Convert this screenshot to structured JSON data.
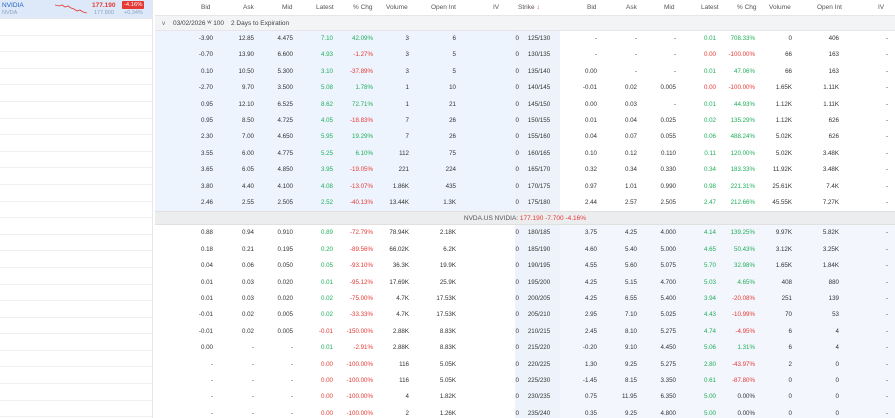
{
  "watchlist": {
    "symbol": "NVIDIA",
    "ticker": "NVDA",
    "price": "177.190",
    "price_sub": "177.800",
    "change_pct": "-4.16%",
    "change_sub": "+0.34%"
  },
  "columns": {
    "bid": "Bid",
    "ask": "Ask",
    "mid": "Mid",
    "latest": "Latest",
    "pct": "% Chg",
    "volume": "Volume",
    "oi": "Open Int",
    "iv": "IV",
    "strike": "Strike",
    "p_bid": "Bid",
    "p_ask": "Ask",
    "p_mid": "Mid",
    "p_latest": "Latest",
    "p_pct": "% Chg",
    "p_volume": "Volume",
    "p_oi": "Open Int",
    "p_iv": "IV"
  },
  "expiration": {
    "chevron": "v",
    "date": "03/02/2026 ᵂ 100",
    "days": "2 Days to Expiration"
  },
  "underlying": {
    "label": "NVDA.US NVIDIA:",
    "price": "177.190",
    "change": "-7.700",
    "pct": "-4.16%"
  },
  "rows_top": [
    [
      "-3.90",
      "12.85",
      "4.475",
      "7.10",
      "42.09%",
      "3",
      "6",
      "0",
      "125/130",
      "-",
      "-",
      "-",
      "0.01",
      "708.33%",
      "0",
      "406",
      "-"
    ],
    [
      "-0.70",
      "13.90",
      "6.600",
      "4.93",
      "-1.27%",
      "3",
      "5",
      "0",
      "130/135",
      "-",
      "-",
      "-",
      "0.00",
      "-100.00%",
      "66",
      "163",
      "-"
    ],
    [
      "0.10",
      "10.50",
      "5.300",
      "3.10",
      "-37.89%",
      "3",
      "5",
      "0",
      "135/140",
      "0.00",
      "-",
      "-",
      "0.01",
      "47.06%",
      "66",
      "163",
      "-"
    ],
    [
      "-2.70",
      "9.70",
      "3.500",
      "5.08",
      "1.78%",
      "1",
      "10",
      "0",
      "140/145",
      "-0.01",
      "0.02",
      "0.005",
      "0.00",
      "-100.00%",
      "1.65K",
      "1.11K",
      "-"
    ],
    [
      "0.95",
      "12.10",
      "6.525",
      "8.62",
      "72.71%",
      "1",
      "21",
      "0",
      "145/150",
      "0.00",
      "0.03",
      "-",
      "0.01",
      "44.93%",
      "1.12K",
      "1.11K",
      "-"
    ],
    [
      "0.95",
      "8.50",
      "4.725",
      "4.05",
      "-18.83%",
      "7",
      "26",
      "0",
      "150/155",
      "0.01",
      "0.04",
      "0.025",
      "0.02",
      "135.29%",
      "1.12K",
      "626",
      "-"
    ],
    [
      "2.30",
      "7.00",
      "4.650",
      "5.95",
      "19.29%",
      "7",
      "26",
      "0",
      "155/160",
      "0.04",
      "0.07",
      "0.055",
      "0.06",
      "488.24%",
      "5.02K",
      "626",
      "-"
    ],
    [
      "3.55",
      "6.00",
      "4.775",
      "5.25",
      "6.10%",
      "112",
      "75",
      "0",
      "160/165",
      "0.10",
      "0.12",
      "0.110",
      "0.11",
      "120.00%",
      "5.02K",
      "3.48K",
      "-"
    ],
    [
      "3.65",
      "6.05",
      "4.850",
      "3.95",
      "-19.05%",
      "221",
      "224",
      "0",
      "165/170",
      "0.32",
      "0.34",
      "0.330",
      "0.34",
      "183.33%",
      "11.92K",
      "3.48K",
      "-"
    ],
    [
      "3.80",
      "4.40",
      "4.100",
      "4.08",
      "-13.07%",
      "1.86K",
      "435",
      "0",
      "170/175",
      "0.97",
      "1.01",
      "0.990",
      "0.98",
      "221.31%",
      "25.61K",
      "7.4K",
      "-"
    ],
    [
      "2.46",
      "2.55",
      "2.505",
      "2.52",
      "-40.13%",
      "13.44K",
      "1.3K",
      "0",
      "175/180",
      "2.44",
      "2.57",
      "2.505",
      "2.47",
      "212.66%",
      "45.55K",
      "7.27K",
      "-"
    ]
  ],
  "rows_bottom": [
    [
      "0.88",
      "0.94",
      "0.910",
      "0.89",
      "-72.79%",
      "78.94K",
      "2.18K",
      "0",
      "180/185",
      "3.75",
      "4.25",
      "4.000",
      "4.14",
      "139.25%",
      "9.97K",
      "5.82K",
      "-"
    ],
    [
      "0.18",
      "0.21",
      "0.195",
      "0.20",
      "-89.56%",
      "66.02K",
      "6.2K",
      "0",
      "185/190",
      "4.60",
      "5.40",
      "5.000",
      "4.65",
      "50.43%",
      "3.12K",
      "3.25K",
      "-"
    ],
    [
      "0.04",
      "0.06",
      "0.050",
      "0.05",
      "-93.10%",
      "36.3K",
      "19.9K",
      "0",
      "190/195",
      "4.55",
      "5.60",
      "5.075",
      "5.70",
      "32.98%",
      "1.65K",
      "1.84K",
      "-"
    ],
    [
      "0.01",
      "0.03",
      "0.020",
      "0.01",
      "-95.12%",
      "17.69K",
      "25.9K",
      "0",
      "195/200",
      "4.25",
      "5.15",
      "4.700",
      "5.03",
      "4.65%",
      "408",
      "880",
      "-"
    ],
    [
      "0.01",
      "0.03",
      "0.020",
      "0.02",
      "-75.00%",
      "4.7K",
      "17.53K",
      "0",
      "200/205",
      "4.25",
      "6.55",
      "5.400",
      "3.94",
      "-20.08%",
      "251",
      "139",
      "-"
    ],
    [
      "-0.01",
      "0.02",
      "0.005",
      "0.02",
      "-33.33%",
      "4.7K",
      "17.53K",
      "0",
      "205/210",
      "2.95",
      "7.10",
      "5.025",
      "4.43",
      "-10.99%",
      "70",
      "53",
      "-"
    ],
    [
      "-0.01",
      "0.02",
      "0.005",
      "-0.01",
      "-150.00%",
      "2.88K",
      "8.83K",
      "0",
      "210/215",
      "2.45",
      "8.10",
      "5.275",
      "4.74",
      "-4.95%",
      "6",
      "4",
      "-"
    ],
    [
      "0.00",
      "-",
      "-",
      "0.01",
      "-2.91%",
      "2.88K",
      "8.83K",
      "0",
      "215/220",
      "-0.20",
      "9.10",
      "4.450",
      "5.06",
      "1.31%",
      "6",
      "4",
      "-"
    ],
    [
      "-",
      "-",
      "-",
      "0.00",
      "-100.00%",
      "116",
      "5.05K",
      "0",
      "220/225",
      "1.30",
      "9.25",
      "5.275",
      "2.80",
      "-43.97%",
      "2",
      "0",
      "-"
    ],
    [
      "-",
      "-",
      "-",
      "0.00",
      "-100.00%",
      "116",
      "5.05K",
      "0",
      "225/230",
      "-1.45",
      "8.15",
      "3.350",
      "0.61",
      "-87.80%",
      "0",
      "0",
      "-"
    ],
    [
      "-",
      "-",
      "-",
      "0.00",
      "-100.00%",
      "4",
      "1.82K",
      "0",
      "230/235",
      "0.75",
      "11.95",
      "6.350",
      "5.00",
      "0.00%",
      "0",
      "0",
      "-"
    ],
    [
      "-",
      "-",
      "-",
      "0.00",
      "-100.00%",
      "2",
      "1.26K",
      "0",
      "235/240",
      "0.35",
      "9.25",
      "4.800",
      "5.00",
      "0.00%",
      "0",
      "0",
      "-"
    ]
  ],
  "colors": {
    "up": "#1fae5a",
    "down": "#e53935",
    "call_itm": "#eef4fd",
    "put_itm": "#f3f6fc"
  }
}
